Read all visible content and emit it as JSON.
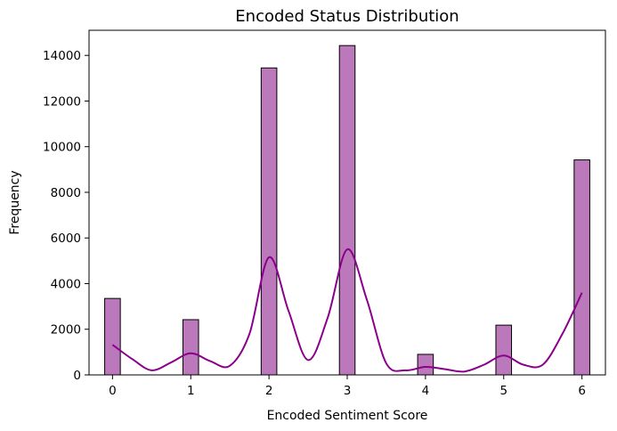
{
  "chart_data": {
    "type": "bar",
    "title": "Encoded Status Distribution",
    "xlabel": "Encoded Sentiment Score",
    "ylabel": "Frequency",
    "xlim": [
      -0.3,
      6.3
    ],
    "ylim": [
      0,
      15100
    ],
    "x_ticks": [
      0,
      1,
      2,
      3,
      4,
      5,
      6
    ],
    "y_ticks": [
      0,
      2000,
      4000,
      6000,
      8000,
      10000,
      12000,
      14000
    ],
    "bin_width": 0.2,
    "categories": [
      "0",
      "1",
      "2",
      "3",
      "4",
      "5",
      "6"
    ],
    "values": [
      3350,
      2420,
      13450,
      14430,
      900,
      2180,
      9420
    ],
    "bar_color": "#bb79bb",
    "bar_edge_color": "#000000",
    "kde_color": "#8b008b",
    "kde": {
      "x": [
        0.0,
        0.25,
        0.5,
        0.75,
        1.0,
        1.25,
        1.5,
        1.75,
        2.0,
        2.25,
        2.5,
        2.75,
        3.0,
        3.25,
        3.5,
        3.75,
        4.0,
        4.25,
        4.5,
        4.75,
        5.0,
        5.25,
        5.5,
        5.75,
        6.0
      ],
      "y": [
        1320,
        700,
        200,
        550,
        950,
        600,
        400,
        1800,
        5150,
        2800,
        650,
        2500,
        5500,
        3300,
        500,
        200,
        350,
        250,
        150,
        450,
        850,
        450,
        450,
        1800,
        3600
      ]
    },
    "grid": false,
    "legend": "none"
  }
}
